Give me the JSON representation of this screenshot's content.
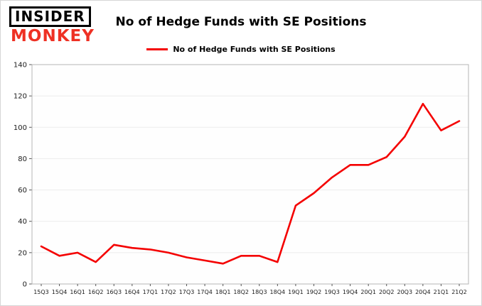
{
  "logo": {
    "line1": "INSIDER",
    "line2": "MONKEY"
  },
  "chart_data": {
    "type": "line",
    "title": "No of Hedge Funds with SE Positions",
    "legend": "No of Hedge Funds with SE Positions",
    "categories": [
      "15Q3",
      "15Q4",
      "16Q1",
      "16Q2",
      "16Q3",
      "16Q4",
      "17Q1",
      "17Q2",
      "17Q3",
      "17Q4",
      "18Q1",
      "18Q2",
      "18Q3",
      "18Q4",
      "19Q1",
      "19Q2",
      "19Q3",
      "19Q4",
      "20Q1",
      "20Q2",
      "20Q3",
      "20Q4",
      "21Q1",
      "21Q2"
    ],
    "values": [
      24,
      18,
      20,
      14,
      25,
      23,
      22,
      20,
      17,
      15,
      13,
      18,
      18,
      14,
      50,
      58,
      68,
      76,
      76,
      81,
      94,
      115,
      98,
      104
    ],
    "xlabel": "",
    "ylabel": "",
    "ylim": [
      0,
      140
    ],
    "ytick_step": 20,
    "grid": true,
    "legend_position": "top-center",
    "line_color": "#f40000",
    "grid_color": "#ececec",
    "border_color": "#b5b5b5"
  }
}
